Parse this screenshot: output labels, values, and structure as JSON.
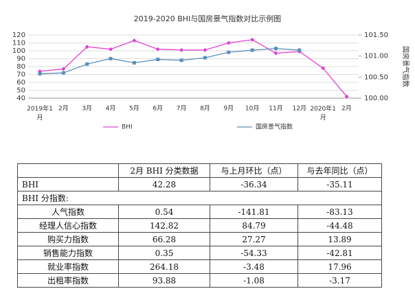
{
  "chart_data": {
    "type": "line",
    "title": "2019-2020 BHI与国房景气指数对比示例图",
    "categories": [
      "2019年1月",
      "2月",
      "3月",
      "4月",
      "5月",
      "6月",
      "7月",
      "8月",
      "9月",
      "10月",
      "11月",
      "12月",
      "2020年1月",
      "2月"
    ],
    "series": [
      {
        "name": "BHI",
        "color": "#e040d0",
        "values": [
          74,
          77,
          105,
          102,
          113,
          102,
          101,
          101,
          110,
          114,
          97,
          99,
          78,
          42
        ]
      },
      {
        "name": "国房景气指数",
        "color": "#5b8fb9",
        "axis": "y2",
        "values": [
          100.58,
          100.6,
          100.81,
          100.94,
          100.84,
          100.92,
          100.9,
          100.96,
          101.09,
          101.14,
          101.18,
          101.14,
          null,
          null
        ]
      }
    ],
    "ylim": [
      40,
      120
    ],
    "yticks": [
      40,
      50,
      60,
      70,
      80,
      90,
      100,
      110,
      120
    ],
    "y2lim": [
      100,
      101.5
    ],
    "y2ticks": [
      {
        "value": 100,
        "label": "100.00"
      },
      {
        "value": 100.5,
        "label": "100.50"
      },
      {
        "value": 101,
        "label": "101.00"
      },
      {
        "value": 101.5,
        "label": "101.50"
      }
    ],
    "y2label": "国房景气指数",
    "legend": "bottom"
  },
  "table": {
    "header": [
      "2月 BHI 分类数据",
      "与上月环比（点）",
      "与去年同比（点）"
    ],
    "rows": [
      [
        "BHI",
        "42.28",
        "-36.34",
        "-35.11"
      ],
      [
        "BHI 分指数:"
      ],
      [
        "人气指数",
        "0.54",
        "-141.81",
        "-83.13"
      ],
      [
        "经理人信心指数",
        "142.82",
        "84.79",
        "-44.48"
      ],
      [
        "购买力指数",
        "66.28",
        "27.27",
        "13.89"
      ],
      [
        "销售能力指数",
        "0.35",
        "-54.33",
        "-42.81"
      ],
      [
        "就业率指数",
        "264.18",
        "-3.48",
        "17.96"
      ],
      [
        "出租率指数",
        "93.88",
        "-1.08",
        "-3.17"
      ]
    ]
  }
}
